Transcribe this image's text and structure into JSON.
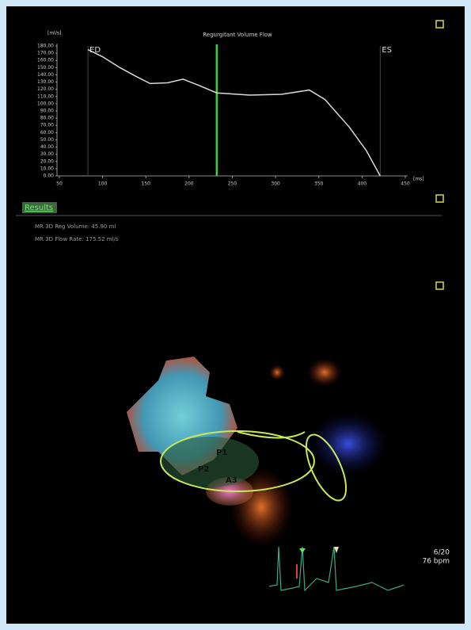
{
  "chart_data": {
    "type": "line",
    "title": "Regurgitant Volume Flow",
    "ylabel": "[ml/s]",
    "xlabel": "[ms]",
    "x": [
      83,
      100,
      120,
      140,
      155,
      175,
      193,
      210,
      232,
      270,
      307,
      339,
      357,
      385,
      405,
      421
    ],
    "series": [
      {
        "name": "Regurgitant Volume Flow",
        "color": "#d9d9d9",
        "values": [
          175,
          165,
          150,
          137,
          128,
          129,
          134,
          126,
          115,
          112,
          113,
          119,
          106,
          68,
          35,
          0
        ]
      }
    ],
    "xlim": [
      50,
      450
    ],
    "ylim": [
      0,
      180
    ],
    "xticks": [
      50,
      100,
      150,
      200,
      250,
      300,
      350,
      400,
      450
    ],
    "yticks": [
      {
        "value": 0,
        "label": "0.00"
      },
      {
        "value": 10,
        "label": "10.00"
      },
      {
        "value": 20,
        "label": "20.00"
      },
      {
        "value": 30,
        "label": "30.00"
      },
      {
        "value": 40,
        "label": "40.00"
      },
      {
        "value": 50,
        "label": "50.00"
      },
      {
        "value": 60,
        "label": "60.00"
      },
      {
        "value": 70,
        "label": "70.00"
      },
      {
        "value": 80,
        "label": "80.00"
      },
      {
        "value": 90,
        "label": "90.00"
      },
      {
        "value": 100,
        "label": "100.00"
      },
      {
        "value": 110,
        "label": "110.00"
      },
      {
        "value": 120,
        "label": "120.00"
      },
      {
        "value": 130,
        "label": "130.00"
      },
      {
        "value": 140,
        "label": "140.00"
      },
      {
        "value": 150,
        "label": "150.00"
      },
      {
        "value": 160,
        "label": "160.00"
      },
      {
        "value": 170,
        "label": "170.00"
      },
      {
        "value": 180,
        "label": "180.00"
      }
    ],
    "annotations": [
      {
        "label": "ED",
        "x": 83
      },
      {
        "label": "ES",
        "x": 421
      }
    ],
    "cursor": {
      "x": 232,
      "color": "#3fcf3f"
    }
  },
  "results": {
    "heading": "Results",
    "lines": [
      "MR 3D Reg Volume: 45.90 ml",
      "MR 3D Flow Rate: 175.52 ml/s"
    ]
  },
  "image_labels": [
    "P1",
    "P2",
    "A3"
  ],
  "frame": {
    "index": "6/20",
    "rate": "76 bpm"
  }
}
